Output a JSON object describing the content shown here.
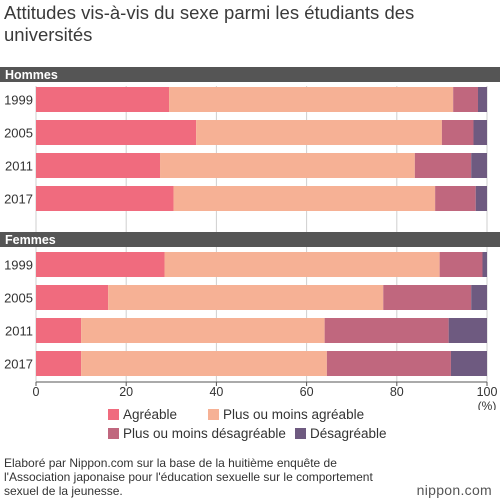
{
  "title": "Attitudes vis-à-vis du sexe parmi les étudiants des universités",
  "chart_data": {
    "type": "bar",
    "stacked": true,
    "orientation": "horizontal",
    "xlim": [
      0,
      100
    ],
    "x_ticks": [
      "0",
      "20",
      "40",
      "60",
      "80",
      "100"
    ],
    "x_unit": "(%)",
    "series_names": [
      "Agréable",
      "Plus ou moins agréable",
      "Plus ou moins désagréable",
      "Désagréable"
    ],
    "colors": [
      "#f06b7e",
      "#f6b195",
      "#c0677e",
      "#6e5a80"
    ],
    "groups": [
      {
        "name": "Hommes",
        "rows": [
          {
            "label": "1999",
            "values": [
              29.5,
              63.0,
              5.5,
              2.0
            ]
          },
          {
            "label": "2005",
            "values": [
              35.5,
              54.5,
              7.0,
              3.0
            ]
          },
          {
            "label": "2011",
            "values": [
              27.5,
              56.5,
              12.5,
              3.5
            ]
          },
          {
            "label": "2017",
            "values": [
              30.5,
              58.0,
              9.0,
              2.5
            ]
          }
        ]
      },
      {
        "name": "Femmes",
        "rows": [
          {
            "label": "1999",
            "values": [
              28.5,
              61.0,
              9.5,
              1.0
            ]
          },
          {
            "label": "2005",
            "values": [
              16.0,
              61.0,
              19.5,
              3.5
            ]
          },
          {
            "label": "2011",
            "values": [
              10.0,
              54.0,
              27.5,
              8.5
            ]
          },
          {
            "label": "2017",
            "values": [
              10.0,
              54.5,
              27.5,
              8.0
            ]
          }
        ]
      }
    ]
  },
  "source": "Elaboré par Nippon.com sur la base de la huitième enquête de l'Association japonaise pour l'éducation sexuelle sur le comportement sexuel de la jeunesse.",
  "logo": "nippon.com"
}
